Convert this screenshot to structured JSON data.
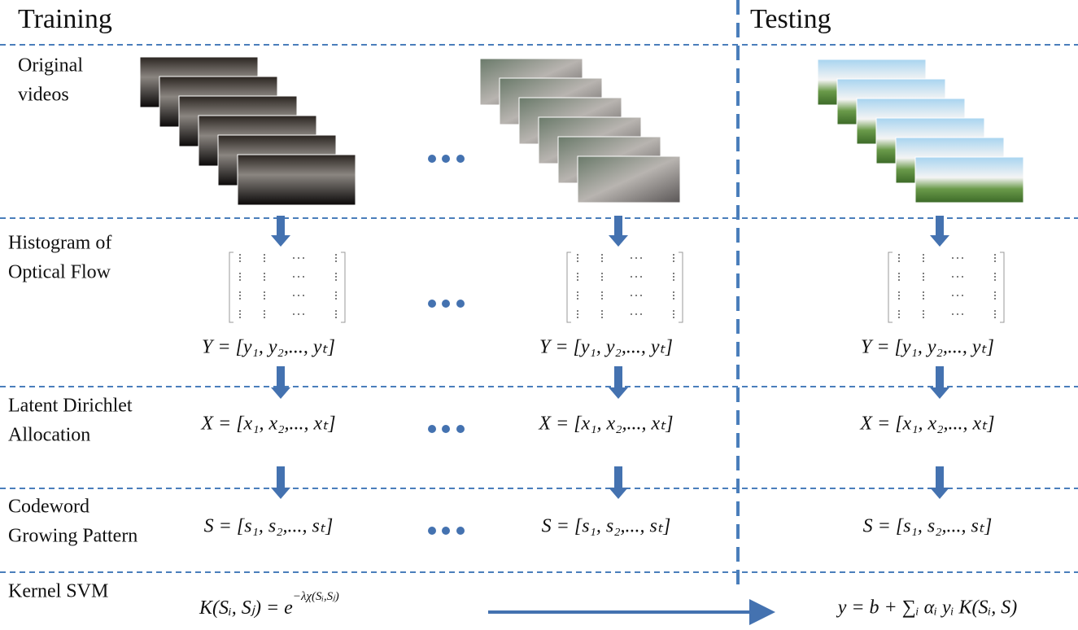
{
  "header": {
    "training": "Training",
    "testing": "Testing"
  },
  "rows": [
    {
      "label": [
        "Original",
        "videos"
      ]
    },
    {
      "label": [
        "Histogram of",
        "Optical Flow"
      ],
      "formulas": [
        "Y = [y₁, y₂,..., yₜ]",
        "Y = [y₁, y₂,..., yₜ]",
        "Y = [y₁, y₂,..., yₜ]"
      ]
    },
    {
      "label": [
        "Latent Dirichlet",
        "Allocation"
      ],
      "formulas": [
        "X = [x₁, x₂,..., xₜ]",
        "X = [x₁, x₂,..., xₜ]",
        "X = [x₁, x₂,..., xₜ]"
      ]
    },
    {
      "label": [
        "Codeword",
        "Growing Pattern"
      ],
      "formulas": [
        "S = [s₁, s₂,..., sₜ]",
        "S = [s₁, s₂,..., sₜ]",
        "S = [s₁, s₂,..., sₜ]"
      ]
    },
    {
      "label": [
        "Kernel SVM"
      ],
      "kernel": {
        "base": "K(Sᵢ, Sⱼ) = e",
        "exponent": "−λχ(Sᵢ,Sⱼ)"
      },
      "decision": "y = b + ∑ᵢ αᵢ yᵢ K(Sᵢ, S)"
    }
  ]
}
